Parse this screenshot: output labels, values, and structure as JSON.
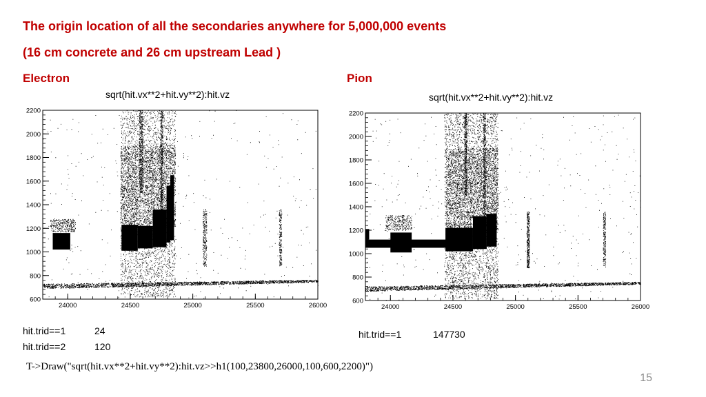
{
  "slide": {
    "title_line1": "The origin location of all the secondaries anywhere for 5,000,000 events",
    "title_line2": "(16 cm concrete and 26 cm upstream Lead )",
    "command": "T->Draw(\"sqrt(hit.vx**2+hit.vy**2):hit.vz>>h1(100,23800,26000,100,600,2200)\")",
    "page_number": "15",
    "accent_color": "#c00000"
  },
  "panels": [
    {
      "label": "Electron",
      "stats": [
        {
          "name": "hit.trid==1",
          "value": "24"
        },
        {
          "name": "hit.trid==2",
          "value": "120"
        }
      ]
    },
    {
      "label": "Pion",
      "stats": [
        {
          "name": "hit.trid==1",
          "value": "147730"
        }
      ]
    }
  ],
  "chart_data": [
    {
      "type": "scatter",
      "title": "sqrt(hit.vx**2+hit.vy**2):hit.vz",
      "xlim": [
        23800,
        26000
      ],
      "ylim": [
        600,
        2200
      ],
      "x_ticks": [
        "24000",
        "24500",
        "25000",
        "25500",
        "26000"
      ],
      "y_ticks": [
        "600",
        "800",
        "1000",
        "1200",
        "1400",
        "1600",
        "1800",
        "2000",
        "2200"
      ],
      "dense_regions": [
        {
          "x": [
            23880,
            24020
          ],
          "y": [
            1020,
            1160
          ]
        },
        {
          "x": [
            24430,
            24560
          ],
          "y": [
            1010,
            1230
          ]
        },
        {
          "x": [
            24560,
            24680
          ],
          "y": [
            1030,
            1220
          ]
        },
        {
          "x": [
            24680,
            24790
          ],
          "y": [
            1040,
            1360
          ]
        },
        {
          "x": [
            24790,
            24820
          ],
          "y": [
            1080,
            1560
          ]
        },
        {
          "x": [
            24820,
            24850
          ],
          "y": [
            1100,
            1650
          ]
        }
      ],
      "sparse_regions": [
        {
          "x": [
            24420,
            24860
          ],
          "y": [
            620,
            2200
          ],
          "count": 3200
        },
        {
          "x": [
            24420,
            24860
          ],
          "y": [
            1200,
            1900
          ],
          "count": 2500
        },
        {
          "x": [
            24570,
            24600
          ],
          "y": [
            1500,
            2200
          ],
          "count": 500
        },
        {
          "x": [
            24740,
            24760
          ],
          "y": [
            1300,
            2200
          ],
          "count": 500
        },
        {
          "x": [
            23860,
            24060
          ],
          "y": [
            1170,
            1280
          ],
          "count": 320
        },
        {
          "x": [
            25080,
            25110
          ],
          "y": [
            880,
            1360
          ],
          "count": 260
        },
        {
          "x": [
            25690,
            25710
          ],
          "y": [
            880,
            1360
          ],
          "count": 220
        },
        {
          "x": [
            23800,
            26000
          ],
          "y": [
            600,
            2200
          ],
          "count": 350
        }
      ],
      "band": {
        "x": [
          23800,
          26000
        ],
        "y_start": [
          690,
          730
        ],
        "y_end": [
          745,
          765
        ]
      }
    },
    {
      "type": "scatter",
      "title": "sqrt(hit.vx**2+hit.vy**2):hit.vz",
      "xlim": [
        23800,
        26000
      ],
      "ylim": [
        600,
        2200
      ],
      "x_ticks": [
        "24000",
        "24500",
        "25000",
        "25500",
        "26000"
      ],
      "y_ticks": [
        "600",
        "800",
        "1000",
        "1200",
        "1400",
        "1600",
        "1800",
        "2000",
        "2200"
      ],
      "dense_regions": [
        {
          "x": [
            23800,
            24620
          ],
          "y": [
            1050,
            1120
          ]
        },
        {
          "x": [
            23800,
            23830
          ],
          "y": [
            1120,
            1210
          ]
        },
        {
          "x": [
            24000,
            24170
          ],
          "y": [
            1010,
            1180
          ]
        },
        {
          "x": [
            24440,
            24660
          ],
          "y": [
            1020,
            1220
          ]
        },
        {
          "x": [
            24660,
            24770
          ],
          "y": [
            1040,
            1320
          ]
        },
        {
          "x": [
            24770,
            24850
          ],
          "y": [
            1060,
            1340
          ]
        }
      ],
      "sparse_regions": [
        {
          "x": [
            24430,
            24860
          ],
          "y": [
            620,
            2200
          ],
          "count": 3500
        },
        {
          "x": [
            24440,
            24860
          ],
          "y": [
            1200,
            1900
          ],
          "count": 2600
        },
        {
          "x": [
            24590,
            24610
          ],
          "y": [
            1500,
            2200
          ],
          "count": 450
        },
        {
          "x": [
            24740,
            24760
          ],
          "y": [
            1300,
            2200
          ],
          "count": 450
        },
        {
          "x": [
            23960,
            24170
          ],
          "y": [
            1200,
            1330
          ],
          "count": 320
        },
        {
          "x": [
            25090,
            25110
          ],
          "y": [
            880,
            1360
          ],
          "count": 400
        },
        {
          "x": [
            25700,
            25720
          ],
          "y": [
            880,
            1360
          ],
          "count": 220
        },
        {
          "x": [
            23800,
            26000
          ],
          "y": [
            600,
            2200
          ],
          "count": 400
        }
      ],
      "band": {
        "x": [
          23800,
          26000
        ],
        "y_start": [
          680,
          720
        ],
        "y_end": [
          740,
          760
        ]
      }
    }
  ]
}
